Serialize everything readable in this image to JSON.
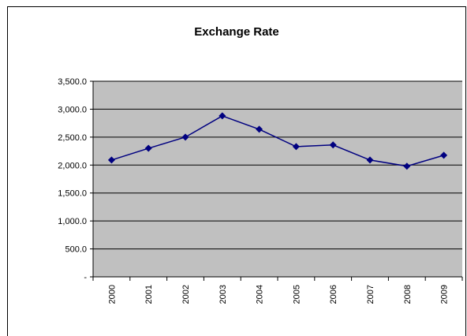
{
  "chart_data": {
    "type": "line",
    "title": "Exchange Rate",
    "categories": [
      "2000",
      "2001",
      "2002",
      "2003",
      "2004",
      "2005",
      "2006",
      "2007",
      "2008",
      "2009"
    ],
    "series": [
      {
        "name": "Exchange Rate",
        "color": "#000080",
        "values": [
          2090,
          2300,
          2500,
          2880,
          2640,
          2330,
          2360,
          2090,
          1980,
          2175
        ]
      }
    ],
    "ylim": [
      0,
      3500
    ],
    "yticks": [
      {
        "value": 0,
        "label": "-"
      },
      {
        "value": 500,
        "label": "500.0"
      },
      {
        "value": 1000,
        "label": "1,000.0"
      },
      {
        "value": 1500,
        "label": "1,500.0"
      },
      {
        "value": 2000,
        "label": "2,000.0"
      },
      {
        "value": 2500,
        "label": "2,500.0"
      },
      {
        "value": 3000,
        "label": "3,000.0"
      },
      {
        "value": 3500,
        "label": "3,500.0"
      }
    ],
    "grid": true,
    "plot_background": "#c0c0c0"
  }
}
